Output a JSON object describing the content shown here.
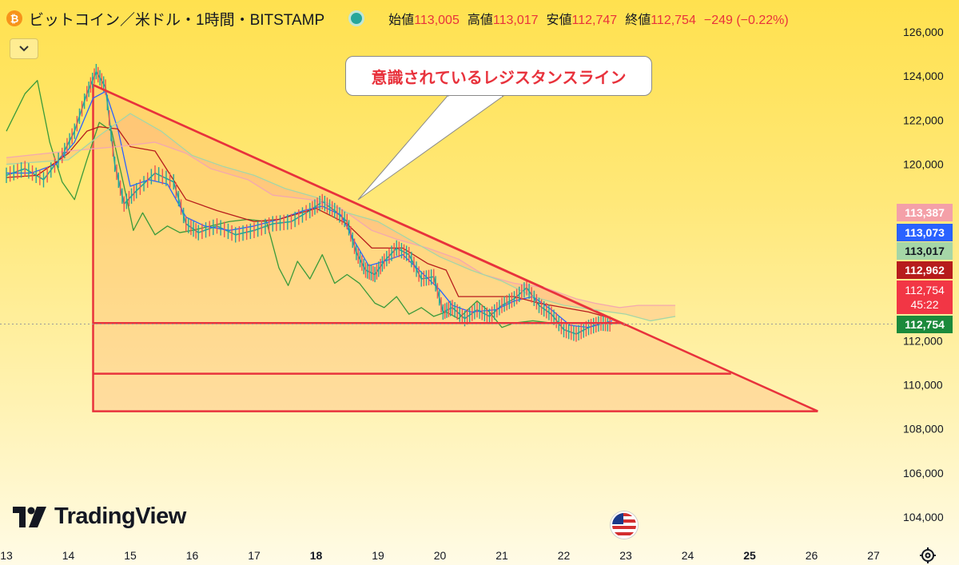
{
  "header": {
    "title": "ビットコイン／米ドル・1時間・BITSTAMP",
    "ohlc": [
      {
        "label": "始値",
        "value": "113,005"
      },
      {
        "label": "高値",
        "value": "113,017"
      },
      {
        "label": "安値",
        "value": "112,747"
      },
      {
        "label": "終値",
        "value": "112,754"
      }
    ],
    "change": "−249 (−0.22%)",
    "collapse_icon": "chevron-down-icon"
  },
  "annotation": {
    "text": "意識されているレジスタンスライン"
  },
  "logo": {
    "text": "TradingView",
    "icon": "tradingview-logo-icon"
  },
  "price_tags": [
    {
      "value": "113,387",
      "color": "#f4a0a8"
    },
    {
      "value": "113,073",
      "color": "#2962ff"
    },
    {
      "value": "113,017",
      "color": "#a5d6a7"
    },
    {
      "value": "112,962",
      "color": "#b71c1c"
    },
    {
      "value": "112,754",
      "sub": "45:22",
      "color": "#f23645"
    },
    {
      "value": "112,754",
      "color": "#1b8a3b"
    }
  ],
  "chart_data": {
    "type": "line",
    "title": "ビットコイン／米ドル・1時間・BITSTAMP",
    "x_ticks": [
      "13",
      "14",
      "15",
      "16",
      "17",
      "18",
      "19",
      "20",
      "21",
      "22",
      "23",
      "24",
      "25",
      "26",
      "27"
    ],
    "bold_x_ticks": [
      "18",
      "25"
    ],
    "y_ticks": [
      "126,000",
      "124,000",
      "122,000",
      "120,000",
      "112,000",
      "110,000",
      "108,000",
      "106,000",
      "104,000"
    ],
    "ylim": [
      103000,
      126800
    ],
    "xlim": [
      13,
      27.9
    ],
    "grid": false,
    "last_price": 112754,
    "series": [
      {
        "key": "price",
        "color": "#26a69a",
        "points": [
          [
            13,
            119.5
          ],
          [
            13.3,
            119.8
          ],
          [
            13.6,
            119.3
          ],
          [
            13.9,
            120.4
          ],
          [
            14.1,
            121.5
          ],
          [
            14.3,
            123.2
          ],
          [
            14.45,
            124.2
          ],
          [
            14.6,
            123.5
          ],
          [
            14.75,
            120.0
          ],
          [
            14.9,
            118.2
          ],
          [
            15.1,
            118.8
          ],
          [
            15.4,
            119.6
          ],
          [
            15.7,
            119.2
          ],
          [
            15.9,
            117.3
          ],
          [
            16.1,
            116.9
          ],
          [
            16.4,
            117.2
          ],
          [
            16.7,
            116.8
          ],
          [
            17.0,
            117.0
          ],
          [
            17.3,
            117.3
          ],
          [
            17.6,
            117.4
          ],
          [
            17.9,
            117.9
          ],
          [
            18.1,
            118.3
          ],
          [
            18.3,
            117.9
          ],
          [
            18.5,
            117.4
          ],
          [
            18.65,
            116.0
          ],
          [
            18.8,
            115.2
          ],
          [
            18.95,
            115.0
          ],
          [
            19.1,
            115.6
          ],
          [
            19.3,
            116.2
          ],
          [
            19.5,
            115.9
          ],
          [
            19.7,
            114.8
          ],
          [
            19.9,
            114.9
          ],
          [
            20.05,
            113.3
          ],
          [
            20.2,
            113.5
          ],
          [
            20.4,
            113.0
          ],
          [
            20.6,
            113.4
          ],
          [
            20.8,
            113.1
          ],
          [
            21.0,
            113.6
          ],
          [
            21.2,
            113.9
          ],
          [
            21.4,
            114.4
          ],
          [
            21.6,
            113.6
          ],
          [
            21.8,
            113.2
          ],
          [
            22.0,
            112.5
          ],
          [
            22.2,
            112.3
          ],
          [
            22.4,
            112.6
          ],
          [
            22.6,
            112.8
          ],
          [
            22.78,
            112.75
          ]
        ]
      },
      {
        "key": "lagging",
        "color": "#3a9a3a",
        "points": [
          [
            13,
            121.5
          ],
          [
            13.3,
            123.2
          ],
          [
            13.5,
            123.8
          ],
          [
            13.7,
            121.0
          ],
          [
            13.9,
            119.2
          ],
          [
            14.1,
            118.4
          ],
          [
            14.3,
            120.2
          ],
          [
            14.5,
            121.9
          ],
          [
            14.7,
            121.5
          ],
          [
            14.9,
            119.0
          ],
          [
            15.05,
            117.0
          ],
          [
            15.2,
            117.8
          ],
          [
            15.4,
            116.8
          ],
          [
            15.6,
            117.2
          ],
          [
            15.8,
            116.9
          ],
          [
            16.0,
            117.0
          ],
          [
            16.3,
            117.2
          ],
          [
            16.6,
            117.4
          ],
          [
            16.9,
            117.5
          ],
          [
            17.2,
            117.4
          ],
          [
            17.4,
            115.3
          ],
          [
            17.55,
            114.5
          ],
          [
            17.7,
            115.6
          ],
          [
            17.9,
            114.8
          ],
          [
            18.1,
            115.9
          ],
          [
            18.3,
            114.6
          ],
          [
            18.5,
            115.0
          ],
          [
            18.7,
            114.6
          ],
          [
            18.95,
            113.7
          ],
          [
            19.1,
            113.5
          ],
          [
            19.3,
            114.0
          ],
          [
            19.5,
            113.2
          ],
          [
            19.7,
            113.5
          ],
          [
            19.9,
            113.1
          ],
          [
            20.1,
            113.3
          ],
          [
            20.3,
            113.0
          ],
          [
            20.6,
            113.8
          ],
          [
            20.8,
            113.3
          ],
          [
            21.0,
            112.6
          ],
          [
            21.2,
            112.8
          ],
          [
            21.5,
            112.9
          ],
          [
            21.8,
            112.8
          ]
        ]
      },
      {
        "key": "conversion",
        "color": "#2962ff",
        "points": [
          [
            13,
            119.6
          ],
          [
            13.4,
            119.6
          ],
          [
            13.8,
            120.0
          ],
          [
            14.1,
            121.0
          ],
          [
            14.4,
            123.0
          ],
          [
            14.6,
            123.3
          ],
          [
            14.8,
            121.6
          ],
          [
            15.0,
            119.0
          ],
          [
            15.3,
            119.3
          ],
          [
            15.6,
            119.1
          ],
          [
            15.9,
            117.6
          ],
          [
            16.2,
            117.2
          ],
          [
            16.6,
            117.0
          ],
          [
            17.0,
            117.2
          ],
          [
            17.4,
            117.5
          ],
          [
            17.8,
            117.9
          ],
          [
            18.1,
            118.1
          ],
          [
            18.4,
            117.7
          ],
          [
            18.6,
            116.6
          ],
          [
            18.85,
            115.4
          ],
          [
            19.1,
            115.6
          ],
          [
            19.4,
            115.9
          ],
          [
            19.7,
            115.1
          ],
          [
            20.0,
            114.3
          ],
          [
            20.2,
            113.6
          ],
          [
            20.5,
            113.3
          ],
          [
            20.9,
            113.4
          ],
          [
            21.2,
            113.8
          ],
          [
            21.5,
            114.0
          ],
          [
            21.8,
            113.4
          ],
          [
            22.1,
            112.7
          ],
          [
            22.4,
            112.6
          ],
          [
            22.78,
            112.9
          ]
        ]
      },
      {
        "key": "base",
        "color": "#b71c1c",
        "points": [
          [
            13,
            119.4
          ],
          [
            13.5,
            119.5
          ],
          [
            14.0,
            120.5
          ],
          [
            14.3,
            121.5
          ],
          [
            14.5,
            121.7
          ],
          [
            14.8,
            121.6
          ],
          [
            15.0,
            120.8
          ],
          [
            15.4,
            120.6
          ],
          [
            15.9,
            118.4
          ],
          [
            16.4,
            117.9
          ],
          [
            17.0,
            117.4
          ],
          [
            17.4,
            117.5
          ],
          [
            18.0,
            118.0
          ],
          [
            18.5,
            117.3
          ],
          [
            18.9,
            116.2
          ],
          [
            19.4,
            116.2
          ],
          [
            19.8,
            115.5
          ],
          [
            20.1,
            115.2
          ],
          [
            20.3,
            114.0
          ],
          [
            20.8,
            114.0
          ],
          [
            21.2,
            114.0
          ],
          [
            21.6,
            113.7
          ],
          [
            22.0,
            113.5
          ],
          [
            22.4,
            113.3
          ],
          [
            22.78,
            113.0
          ]
        ]
      },
      {
        "key": "span_a",
        "color": "#f3a8b0",
        "points": [
          [
            13,
            120.3
          ],
          [
            14.0,
            120.6
          ],
          [
            14.8,
            120.8
          ],
          [
            15.4,
            121.0
          ],
          [
            15.9,
            120.5
          ],
          [
            16.3,
            119.8
          ],
          [
            16.9,
            119.3
          ],
          [
            17.3,
            118.6
          ],
          [
            17.9,
            118.4
          ],
          [
            18.4,
            118.0
          ],
          [
            18.9,
            117.0
          ],
          [
            19.3,
            116.6
          ],
          [
            19.8,
            116.2
          ],
          [
            20.3,
            115.7
          ],
          [
            20.7,
            115.0
          ],
          [
            21.2,
            114.6
          ],
          [
            21.7,
            114.4
          ],
          [
            22.2,
            113.9
          ],
          [
            22.5,
            113.7
          ],
          [
            22.9,
            113.5
          ],
          [
            23.2,
            113.6
          ],
          [
            23.8,
            113.6
          ]
        ]
      },
      {
        "key": "span_b",
        "color": "#a5d6a7",
        "points": [
          [
            13,
            120.0
          ],
          [
            14.0,
            120.2
          ],
          [
            14.5,
            121.3
          ],
          [
            15.0,
            122.3
          ],
          [
            15.5,
            121.5
          ],
          [
            16.0,
            120.4
          ],
          [
            16.5,
            119.9
          ],
          [
            17.0,
            119.5
          ],
          [
            17.5,
            118.9
          ],
          [
            18.0,
            118.5
          ],
          [
            18.5,
            117.8
          ],
          [
            19.0,
            117.4
          ],
          [
            19.5,
            116.6
          ],
          [
            20.0,
            115.8
          ],
          [
            20.5,
            115.2
          ],
          [
            21.0,
            114.7
          ],
          [
            21.5,
            114.0
          ],
          [
            22.0,
            113.6
          ],
          [
            22.5,
            113.4
          ],
          [
            23.0,
            113.2
          ],
          [
            23.4,
            112.9
          ],
          [
            23.8,
            113.1
          ]
        ]
      }
    ],
    "drawings": [
      {
        "kind": "resistance_line",
        "from": [
          14.4,
          123.6
        ],
        "to": [
          23.0,
          112.7
        ],
        "color": "#e8323c"
      },
      {
        "kind": "triangle",
        "points": [
          [
            14.4,
            123.6
          ],
          [
            14.4,
            108.8
          ],
          [
            26.1,
            108.8
          ]
        ],
        "color": "#e8323c"
      },
      {
        "kind": "horizontal_line",
        "from": [
          14.4,
          112.8
        ],
        "to": [
          22.9,
          112.8
        ],
        "color": "#e8323c"
      },
      {
        "kind": "horizontal_line",
        "from": [
          14.4,
          110.5
        ],
        "to": [
          24.7,
          110.5
        ],
        "color": "#e8323c"
      }
    ]
  }
}
